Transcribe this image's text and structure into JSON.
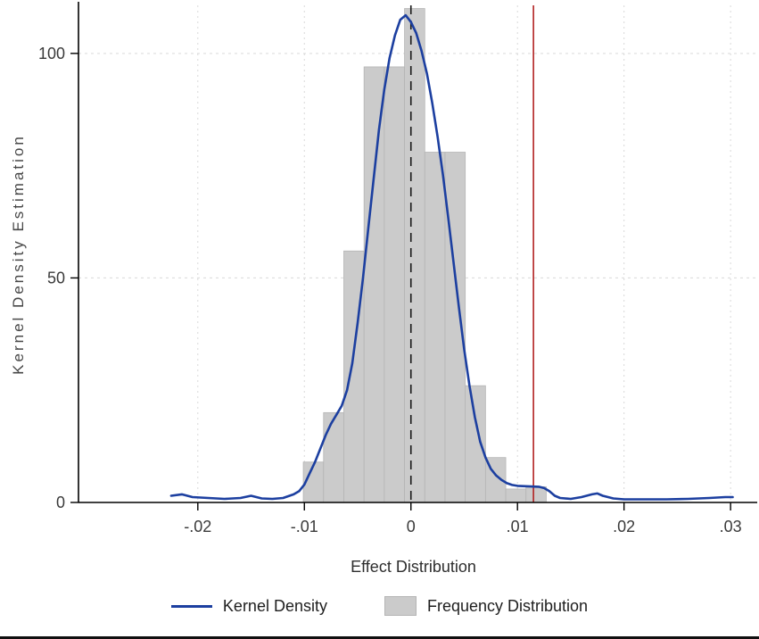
{
  "chart_data": {
    "type": "line",
    "title": "",
    "xlabel": "Effect Distribution",
    "ylabel": "Kernel Density Estimation",
    "xlim": [
      -0.0312,
      0.0325
    ],
    "ylim": [
      0,
      110.7
    ],
    "grid": true,
    "legend_position": "bottom",
    "x_ticks": [
      {
        "v": -0.02,
        "label": "-.02"
      },
      {
        "v": -0.01,
        "label": "-.01"
      },
      {
        "v": 0,
        "label": "0"
      },
      {
        "v": 0.01,
        "label": ".01"
      },
      {
        "v": 0.02,
        "label": ".02"
      },
      {
        "v": 0.03,
        "label": ".03"
      }
    ],
    "y_ticks": [
      {
        "v": 0,
        "label": "0"
      },
      {
        "v": 50,
        "label": "50"
      },
      {
        "v": 100,
        "label": "100"
      }
    ],
    "series": [
      {
        "name": "Kernel Density",
        "type": "line",
        "color": "#1c3fa0",
        "points": [
          [
            -0.0225,
            1.5
          ],
          [
            -0.0215,
            1.8
          ],
          [
            -0.0205,
            1.2
          ],
          [
            -0.019,
            1.0
          ],
          [
            -0.0175,
            0.8
          ],
          [
            -0.016,
            1.0
          ],
          [
            -0.015,
            1.5
          ],
          [
            -0.014,
            0.9
          ],
          [
            -0.013,
            0.8
          ],
          [
            -0.012,
            1.0
          ],
          [
            -0.011,
            1.8
          ],
          [
            -0.0105,
            2.5
          ],
          [
            -0.01,
            4.0
          ],
          [
            -0.0095,
            6.5
          ],
          [
            -0.009,
            9.0
          ],
          [
            -0.0085,
            12.0
          ],
          [
            -0.008,
            15.0
          ],
          [
            -0.0075,
            17.5
          ],
          [
            -0.007,
            19.5
          ],
          [
            -0.0065,
            21.5
          ],
          [
            -0.006,
            25.0
          ],
          [
            -0.0055,
            31.0
          ],
          [
            -0.005,
            40.0
          ],
          [
            -0.0045,
            50.0
          ],
          [
            -0.004,
            61.0
          ],
          [
            -0.0035,
            72.0
          ],
          [
            -0.003,
            83.0
          ],
          [
            -0.0025,
            92.0
          ],
          [
            -0.002,
            99.0
          ],
          [
            -0.0015,
            104.0
          ],
          [
            -0.001,
            107.5
          ],
          [
            -0.0005,
            108.5
          ],
          [
            0.0,
            107.0
          ],
          [
            0.0005,
            104.5
          ],
          [
            0.001,
            100.5
          ],
          [
            0.0015,
            95.5
          ],
          [
            0.002,
            89.0
          ],
          [
            0.0025,
            81.5
          ],
          [
            0.003,
            73.0
          ],
          [
            0.0035,
            63.5
          ],
          [
            0.004,
            53.5
          ],
          [
            0.0045,
            43.5
          ],
          [
            0.005,
            34.0
          ],
          [
            0.0055,
            26.0
          ],
          [
            0.006,
            19.0
          ],
          [
            0.0065,
            13.5
          ],
          [
            0.007,
            10.0
          ],
          [
            0.0075,
            7.5
          ],
          [
            0.008,
            6.0
          ],
          [
            0.0085,
            5.0
          ],
          [
            0.009,
            4.3
          ],
          [
            0.0095,
            3.9
          ],
          [
            0.01,
            3.7
          ],
          [
            0.011,
            3.6
          ],
          [
            0.012,
            3.5
          ],
          [
            0.0125,
            3.2
          ],
          [
            0.013,
            2.5
          ],
          [
            0.0135,
            1.5
          ],
          [
            0.014,
            1.0
          ],
          [
            0.015,
            0.8
          ],
          [
            0.016,
            1.2
          ],
          [
            0.017,
            1.8
          ],
          [
            0.0175,
            2.0
          ],
          [
            0.018,
            1.5
          ],
          [
            0.019,
            0.9
          ],
          [
            0.02,
            0.7
          ],
          [
            0.022,
            0.7
          ],
          [
            0.024,
            0.7
          ],
          [
            0.026,
            0.8
          ],
          [
            0.028,
            1.0
          ],
          [
            0.0295,
            1.2
          ],
          [
            0.0302,
            1.2
          ]
        ]
      },
      {
        "name": "Frequency Distribution",
        "type": "bar",
        "color": "#cbcbcb",
        "edge_color": "#b5b5b5",
        "bars": [
          [
            -0.0101,
            -0.0082,
            9
          ],
          [
            -0.0082,
            -0.0063,
            20
          ],
          [
            -0.0063,
            -0.0044,
            56
          ],
          [
            -0.0044,
            -0.0025,
            97
          ],
          [
            -0.0025,
            -0.0006,
            97
          ],
          [
            -0.0006,
            0.0013,
            110
          ],
          [
            0.0013,
            0.0032,
            78
          ],
          [
            0.0032,
            0.0051,
            78
          ],
          [
            0.0051,
            0.007,
            26
          ],
          [
            0.007,
            0.0089,
            10
          ],
          [
            0.0089,
            0.0108,
            3
          ],
          [
            0.0108,
            0.0127,
            3.5
          ]
        ]
      }
    ],
    "reference_lines": [
      {
        "name": "zero-dashed-line",
        "x": 0,
        "style": "dashed",
        "color": "#1a1a1a"
      },
      {
        "name": "red-reference-line",
        "x": 0.0115,
        "style": "solid",
        "color": "#b22222"
      }
    ],
    "legend": [
      {
        "swatch": "line",
        "label": "Kernel Density"
      },
      {
        "swatch": "box",
        "label": "Frequency Distribution"
      }
    ],
    "colors": {
      "grid": "#d9d9d9",
      "axis": "#000000",
      "text": "#3a3a3a",
      "border": "#101010"
    }
  }
}
